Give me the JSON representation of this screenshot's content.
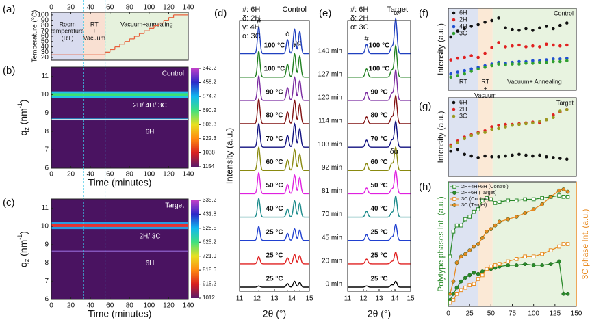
{
  "chart_data": [
    {
      "type": "step",
      "label": "(a)",
      "ylabel": "Temperature (°C)",
      "xlim": [
        0,
        140
      ],
      "xticks": [
        0,
        20,
        40,
        60,
        80,
        100,
        120,
        140
      ],
      "ylim": [
        15,
        105
      ],
      "yticks": [
        20,
        30,
        40,
        50,
        60,
        70,
        80,
        90,
        100
      ],
      "regions": [
        {
          "name": [
            "Room",
            "temperature",
            "(RT)"
          ],
          "from": 0,
          "to": 33,
          "color": "#d9dcef"
        },
        {
          "name": [
            "RT",
            "+",
            "Vacuum"
          ],
          "from": 33,
          "to": 55,
          "color": "#f9e0d2"
        },
        {
          "name": [
            "Vacuum+annealing"
          ],
          "from": 55,
          "to": 140,
          "color": "#e6f2dd"
        }
      ],
      "x": [
        0,
        55,
        60,
        65,
        70,
        75,
        80,
        85,
        90,
        95,
        100,
        105,
        110,
        115,
        120,
        125,
        140
      ],
      "values": [
        25,
        30,
        35,
        40,
        45,
        50,
        55,
        60,
        65,
        70,
        75,
        80,
        85,
        90,
        95,
        100,
        100
      ],
      "color": "#e8603c"
    },
    {
      "type": "heatmap",
      "label": "(b)",
      "annotation": "Control",
      "xlabel": "Time (minutes)",
      "ylabel": [
        "q",
        "z",
        " (nm",
        "-1",
        ")"
      ],
      "xlim": [
        0,
        140
      ],
      "xticks": [
        0,
        20,
        40,
        60,
        80,
        100,
        120,
        140
      ],
      "ylim": [
        6,
        11.5
      ],
      "yticks": [
        6,
        7,
        8,
        9,
        10,
        11
      ],
      "vlines": [
        33,
        55
      ],
      "background": "#4a1361",
      "bands": [
        {
          "name": "2H/ 4H/ 3C",
          "q": 10.0,
          "width": 0.35,
          "color": "#22c0e8",
          "core": "#3ee070"
        },
        {
          "name": "6H",
          "q": 8.65,
          "width": 0.1,
          "color": "#20b0e0",
          "core": "#e8e8e8"
        }
      ],
      "clim": [
        342.2,
        1154
      ],
      "cticks": [
        342.2,
        458.2,
        574.2,
        690.2,
        806.3,
        922.3,
        1038,
        1154
      ],
      "colormap": [
        "#c040c8",
        "#2a2ac8",
        "#10b8f0",
        "#40e080",
        "#e8e020",
        "#ff8a10",
        "#d82020",
        "#5a1a6a"
      ]
    },
    {
      "type": "heatmap",
      "label": "(c)",
      "annotation": "Target",
      "xlabel": "Time (minutes)",
      "ylabel": [
        "q",
        "z",
        " (nm",
        "-1",
        ")"
      ],
      "xlim": [
        0,
        140
      ],
      "xticks": [
        0,
        20,
        40,
        60,
        80,
        100,
        120,
        140
      ],
      "ylim": [
        6,
        11.5
      ],
      "yticks": [
        6,
        7,
        8,
        9,
        10,
        11
      ],
      "vlines": [
        33,
        55
      ],
      "background": "#4a1361",
      "bands": [
        {
          "name": "2H/ 3C",
          "q": 10.05,
          "width": 0.4,
          "color": "#2a9ae0",
          "core": "#e83030"
        },
        {
          "name": "6H",
          "q": 8.65,
          "width": 0.06,
          "color": "#6a3aa0",
          "core": "#8a5ac0"
        }
      ],
      "clim": [
        335.2,
        1012
      ],
      "cticks": [
        335.2,
        431.8,
        528.5,
        625.2,
        721.9,
        818.6,
        915.2,
        1012
      ],
      "colormap": [
        "#c040c8",
        "#2a2ac8",
        "#10b8f0",
        "#40e080",
        "#e8e020",
        "#ff8a10",
        "#d82020",
        "#5a1a6a"
      ]
    },
    {
      "type": "xrd",
      "label": "(d)",
      "annotation": "Control",
      "legend": [
        "#: 6H",
        "δ: 2H",
        "γ: 4H",
        "α: 3C"
      ],
      "xlabel": "2θ (°)",
      "ylabel": "Intensity (a.u.)",
      "xlim": [
        11,
        15
      ],
      "xticks": [
        11,
        12,
        13,
        14,
        15
      ],
      "peaks": [
        12.1,
        13.75,
        14.15,
        14.45
      ],
      "peak_width": 0.1,
      "markers": [
        {
          "text": "#",
          "x": 12.1,
          "series": 10
        },
        {
          "text": "δ",
          "x": 13.75,
          "series": 10
        },
        {
          "text": "γα",
          "x": 14.3,
          "series": 10
        }
      ],
      "series": [
        {
          "name": "25 °C",
          "color": "#000000",
          "values": [
            0.05,
            0.15,
            0.25,
            0.2
          ]
        },
        {
          "name": "25 °C",
          "color": "#e02020",
          "values": [
            0.3,
            0.25,
            0.4,
            0.35
          ]
        },
        {
          "name": "25 °C",
          "color": "#2040d0",
          "values": [
            0.6,
            0.3,
            0.5,
            0.45
          ]
        },
        {
          "name": "40 °C",
          "color": "#1a8a8a",
          "values": [
            0.8,
            0.35,
            0.7,
            0.6
          ]
        },
        {
          "name": "50 °C",
          "color": "#e020e0",
          "values": [
            0.9,
            0.4,
            0.8,
            0.7
          ]
        },
        {
          "name": "60 °C",
          "color": "#8a8a10",
          "values": [
            1.0,
            0.45,
            0.9,
            0.7
          ]
        },
        {
          "name": "70 °C",
          "color": "#101080",
          "values": [
            1.0,
            0.5,
            1.0,
            0.8
          ]
        },
        {
          "name": "80 °C",
          "color": "#801010",
          "values": [
            1.05,
            0.5,
            1.0,
            0.85
          ]
        },
        {
          "name": "90 °C",
          "color": "#7a2aa0",
          "values": [
            1.05,
            0.55,
            1.0,
            0.85
          ]
        },
        {
          "name": "100 °C",
          "color": "#208020",
          "values": [
            1.1,
            0.55,
            1.0,
            0.9
          ]
        },
        {
          "name": "100 °C",
          "color": "#2040c0",
          "values": [
            1.15,
            0.6,
            1.05,
            0.95
          ]
        }
      ]
    },
    {
      "type": "xrd",
      "label": "(e)",
      "annotation": "Target",
      "legend": [
        "#: 6H",
        "δ: 2H",
        "α: 3C"
      ],
      "xlabel": "2θ (°)",
      "xlim": [
        11,
        15
      ],
      "xticks": [
        11,
        12,
        13,
        14,
        15
      ],
      "peaks": [
        12.2,
        13.8,
        14.05
      ],
      "peak_width": 0.12,
      "markers": [
        {
          "text": "#",
          "x": 12.2,
          "series": 10
        },
        {
          "text": "α",
          "x": 14.05,
          "series": 10
        },
        {
          "text": "δα",
          "x": 13.95,
          "series": 5
        }
      ],
      "series": [
        {
          "name": "0 min",
          "temp": "25 °C",
          "color": "#000000",
          "values": [
            0.05,
            0.1,
            0.25
          ]
        },
        {
          "name": "20 min",
          "temp": "25 °C",
          "color": "#e02020",
          "values": [
            0.2,
            0.1,
            0.5
          ]
        },
        {
          "name": "45 min",
          "temp": "25 °C",
          "color": "#2040d0",
          "values": [
            0.25,
            0.15,
            0.7
          ]
        },
        {
          "name": "70 min",
          "temp": "40 °C",
          "color": "#1a8a8a",
          "values": [
            0.25,
            0.2,
            0.9
          ]
        },
        {
          "name": "81 min",
          "temp": "50 °C",
          "color": "#e020e0",
          "values": [
            0.25,
            0.2,
            1.0
          ]
        },
        {
          "name": "92 min",
          "temp": "60 °C",
          "color": "#8a8a10",
          "values": [
            0.3,
            0.3,
            1.0
          ]
        },
        {
          "name": "103 min",
          "temp": "70 °C",
          "color": "#101080",
          "values": [
            0.3,
            0.3,
            1.1
          ]
        },
        {
          "name": "114 min",
          "temp": "80 °C",
          "color": "#801010",
          "values": [
            0.3,
            0.3,
            1.2
          ]
        },
        {
          "name": "120 min",
          "temp": "90 °C",
          "color": "#7a2aa0",
          "values": [
            0.35,
            0.3,
            1.3
          ]
        },
        {
          "name": "127 min",
          "temp": "100 °C",
          "color": "#208020",
          "values": [
            0.35,
            0.3,
            1.35
          ]
        },
        {
          "name": "140 min",
          "temp": "100 °C",
          "color": "#2040c0",
          "values": [
            0.4,
            0.3,
            1.5
          ]
        }
      ]
    },
    {
      "type": "scatter",
      "label": "(f)",
      "annotation": "Control",
      "ylabel": "Intensity (a.u.)",
      "xlim": [
        0,
        150
      ],
      "ylim": [
        0,
        10
      ],
      "regions": [
        {
          "name": [
            "RT"
          ],
          "from": 0,
          "to": 35,
          "color": "#dde3f2"
        },
        {
          "name": [
            "RT",
            "+",
            "Vacuum"
          ],
          "from": 35,
          "to": 52,
          "color": "#fbe9d6"
        },
        {
          "name": [
            "Vacuum+ Annealing"
          ],
          "from": 52,
          "to": 150,
          "color": "#e8f3e0"
        }
      ],
      "x": [
        3,
        11,
        19,
        27,
        35,
        43,
        51,
        59,
        67,
        75,
        83,
        91,
        99,
        107,
        115,
        123,
        131,
        139
      ],
      "series": [
        {
          "name": "6H",
          "color": "#111111",
          "values": [
            6.5,
            7.2,
            7.5,
            7.8,
            8.0,
            8.3,
            8.5,
            8.8,
            7.6,
            7.4,
            7.3,
            7.5,
            7.3,
            7.6,
            7.8,
            7.5,
            7.9,
            8.2
          ]
        },
        {
          "name": "2H",
          "color": "#e02020",
          "values": [
            3.7,
            3.9,
            4.0,
            4.2,
            4.0,
            4.5,
            5.2,
            5.8,
            5.3,
            5.4,
            5.5,
            5.3,
            5.4,
            5.3,
            5.6,
            5.5,
            5.4,
            5.5
          ]
        },
        {
          "name": "4H",
          "color": "#2050d0",
          "values": [
            2.0,
            2.2,
            2.4,
            2.6,
            2.8,
            3.0,
            3.2,
            3.4,
            3.3,
            3.4,
            3.5,
            3.5,
            3.6,
            3.6,
            3.7,
            3.8,
            3.8,
            3.9
          ]
        },
        {
          "name": "3C",
          "color": "#30a030",
          "values": [
            1.6,
            1.8,
            2.0,
            2.3,
            2.6,
            2.8,
            3.0,
            3.2,
            3.1,
            3.2,
            3.2,
            3.3,
            3.3,
            3.4,
            3.4,
            3.5,
            3.5,
            3.6
          ]
        }
      ]
    },
    {
      "type": "scatter",
      "label": "(g)",
      "annotation": "Target",
      "ylabel": "Intensity (a.u.)",
      "xlim": [
        0,
        150
      ],
      "ylim": [
        0,
        10
      ],
      "regions": [
        {
          "from": 0,
          "to": 35,
          "color": "#dde3f2"
        },
        {
          "from": 35,
          "to": 52,
          "color": "#fbe9d6"
        },
        {
          "from": 52,
          "to": 150,
          "color": "#e8f3e0"
        }
      ],
      "x": [
        3,
        11,
        19,
        27,
        35,
        43,
        51,
        59,
        67,
        75,
        83,
        91,
        99,
        107,
        115,
        123,
        131,
        139
      ],
      "series": [
        {
          "name": "6H",
          "color": "#111111",
          "values": [
            3.2,
            3.4,
            2.8,
            2.6,
            2.4,
            2.6,
            2.5,
            2.5,
            2.6,
            2.7,
            2.8,
            2.7,
            2.6,
            2.7,
            2.5,
            2.4,
            2.3,
            2.2
          ]
        },
        {
          "name": "2H",
          "color": "#e02020",
          "values": [
            4.0,
            4.5,
            5.0,
            5.3,
            5.6,
            5.8,
            6.3,
            6.5,
            6.6,
            6.6,
            6.7,
            6.8,
            6.9,
            6.8,
            7.2,
            7.8,
            8.2,
            8.5
          ]
        },
        {
          "name": "3C",
          "color": "#9a9a20",
          "values": [
            3.8,
            4.3,
            4.8,
            5.2,
            5.5,
            5.6,
            6.0,
            6.1,
            6.3,
            6.5,
            6.6,
            6.7,
            6.8,
            7.0,
            7.2,
            7.5,
            8.3,
            8.5
          ]
        }
      ]
    },
    {
      "type": "dual-line",
      "label": "(h)",
      "ylabel": "Polytype phases Int. (a.u.)",
      "y2label": "3C phase Int. (a.u.)",
      "ycolor": "#2a8a2a",
      "y2color": "#e88a20",
      "xlim": [
        0,
        150
      ],
      "xticks": [
        0,
        25,
        50,
        75,
        100,
        125,
        150
      ],
      "ylim": [
        0,
        10
      ],
      "y2lim": [
        0,
        10
      ],
      "regions": [
        {
          "from": 0,
          "to": 35,
          "color": "#dde3f2"
        },
        {
          "from": 35,
          "to": 52,
          "color": "#fbe9d6"
        },
        {
          "from": 52,
          "to": 150,
          "color": "#e8f3e0"
        }
      ],
      "x": [
        2,
        6,
        10,
        15,
        20,
        25,
        30,
        35,
        40,
        45,
        50,
        55,
        60,
        70,
        80,
        90,
        100,
        110,
        120,
        130,
        135,
        140
      ],
      "series": [
        {
          "name": "2H+4H+6H (Control)",
          "color": "#2a8a2a",
          "marker": "square-open",
          "values": [
            4,
            6,
            6.5,
            6.5,
            7,
            7.2,
            7.6,
            7.8,
            8.5,
            8.7,
            8.6,
            8.3,
            8.4,
            8.5,
            8.5,
            8.6,
            8.6,
            8.7,
            8.8,
            8.9,
            8.8,
            8.8
          ]
        },
        {
          "name": "2H+6H (Target)",
          "color": "#2a8a2a",
          "marker": "circle",
          "values": [
            0.5,
            1.0,
            1.5,
            2.0,
            2.3,
            2.5,
            2.7,
            2.6,
            2.8,
            3.0,
            3.0,
            3.1,
            3.2,
            3.3,
            3.3,
            3.4,
            3.3,
            3.3,
            3.4,
            3.6,
            1.0,
            1.0
          ]
        },
        {
          "name": "3C (Control)",
          "color": "#e88a20",
          "marker": "square-open",
          "axis": "y2",
          "values": [
            0.3,
            0.5,
            1.0,
            1.3,
            1.5,
            1.7,
            1.8,
            2.2,
            2.5,
            3.0,
            3.2,
            3.3,
            3.4,
            3.6,
            3.8,
            4.0,
            4.0,
            4.2,
            4.5,
            4.8,
            5.0,
            5.0
          ]
        },
        {
          "name": "3C (Target)",
          "color": "#e88a20",
          "marker": "circle",
          "axis": "y2",
          "values": [
            1.0,
            2.0,
            3.5,
            4.0,
            4.2,
            4.5,
            4.8,
            5.0,
            5.5,
            6.0,
            6.2,
            6.5,
            6.8,
            7.0,
            7.2,
            7.5,
            7.8,
            8.2,
            8.8,
            9.3,
            9.4,
            9.2
          ]
        }
      ]
    }
  ]
}
